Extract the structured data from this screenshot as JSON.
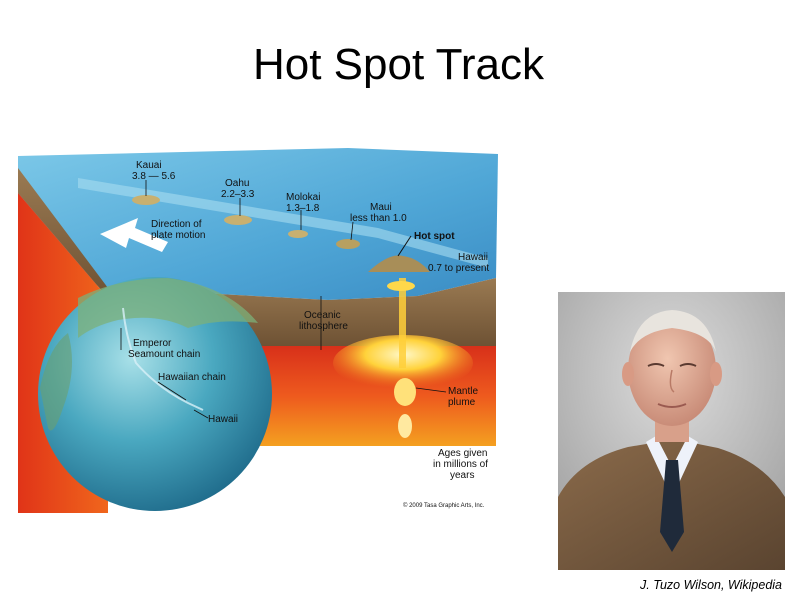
{
  "slide": {
    "title": "Hot Spot Track",
    "caption": "J. Tuzo Wilson, Wikipedia"
  },
  "diagram": {
    "islands": [
      {
        "name": "Kauai",
        "age": "3.8 — 5.6"
      },
      {
        "name": "Oahu",
        "age": "2.2–3.3"
      },
      {
        "name": "Molokai",
        "age": "1.3–1.8"
      },
      {
        "name": "Maui",
        "age": "less than 1.0"
      },
      {
        "name": "Hawaii",
        "age": "0.7 to present"
      }
    ],
    "direction_label": [
      "Direction of",
      "plate motion"
    ],
    "hot_spot_label": "Hot spot",
    "lithosphere_label": [
      "Oceanic",
      "lithosphere"
    ],
    "plume_label": [
      "Mantle",
      "plume"
    ],
    "ages_note": [
      "Ages given",
      "in millions of",
      "years"
    ],
    "globe_labels": {
      "emperor": [
        "Emperor",
        "Seamount chain"
      ],
      "hawaiian_chain": "Hawaiian chain",
      "hawaii": "Hawaii"
    },
    "copyright": "© 2009 Tasa Graphic Arts, Inc."
  },
  "colors": {
    "ocean": "#5fb4dc",
    "mantle": "#e8401c",
    "plume": "#ffd23a",
    "crust": "#8a6a44"
  }
}
